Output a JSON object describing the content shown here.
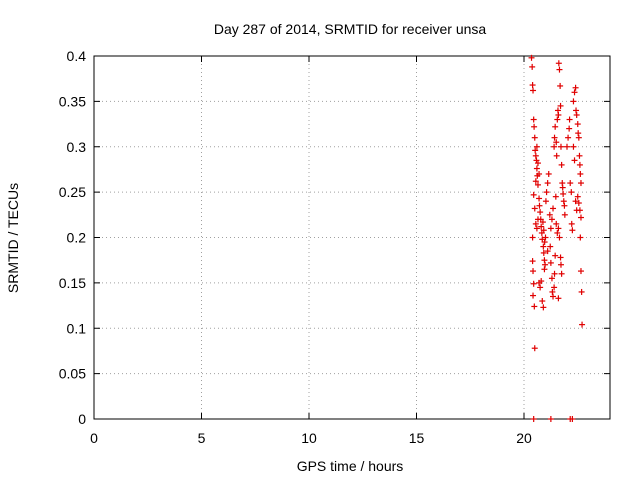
{
  "chart_data": {
    "type": "scatter",
    "title": "Day 287 of 2014, SRMTID for receiver unsa",
    "xlabel": "GPS time / hours",
    "ylabel": "SRMTID / TECUs",
    "xlim": [
      0,
      24
    ],
    "ylim": [
      0,
      0.4
    ],
    "x_ticks": [
      0,
      5,
      10,
      15,
      20
    ],
    "x_tick_labels": [
      "0",
      "5",
      "10",
      "15",
      "20"
    ],
    "y_ticks": [
      0,
      0.05,
      0.1,
      0.15,
      0.2,
      0.25,
      0.3,
      0.35,
      0.4
    ],
    "y_tick_labels": [
      "0",
      "0.05",
      "0.1",
      "0.15",
      "0.2",
      "0.25",
      "0.3",
      "0.35",
      "0.4"
    ],
    "grid": true,
    "marker": "+",
    "color": "#e00000",
    "series": [
      {
        "name": "SRMTID",
        "points": [
          [
            20.35,
            0.398
          ],
          [
            20.38,
            0.388
          ],
          [
            20.4,
            0.368
          ],
          [
            20.42,
            0.362
          ],
          [
            20.45,
            0.33
          ],
          [
            20.47,
            0.322
          ],
          [
            20.5,
            0.31
          ],
          [
            20.52,
            0.296
          ],
          [
            20.55,
            0.29
          ],
          [
            20.58,
            0.285
          ],
          [
            20.6,
            0.276
          ],
          [
            20.62,
            0.268
          ],
          [
            20.65,
            0.258
          ],
          [
            20.7,
            0.243
          ],
          [
            20.72,
            0.235
          ],
          [
            20.75,
            0.228
          ],
          [
            20.78,
            0.22
          ],
          [
            20.8,
            0.212
          ],
          [
            20.83,
            0.205
          ],
          [
            20.85,
            0.198
          ],
          [
            20.9,
            0.19
          ],
          [
            20.92,
            0.183
          ],
          [
            20.95,
            0.175
          ],
          [
            20.98,
            0.17
          ],
          [
            20.45,
            0.247
          ],
          [
            20.5,
            0.232
          ],
          [
            20.55,
            0.215
          ],
          [
            20.6,
            0.21
          ],
          [
            20.65,
            0.22
          ],
          [
            20.4,
            0.2
          ],
          [
            20.4,
            0.174
          ],
          [
            20.42,
            0.163
          ],
          [
            20.45,
            0.149
          ],
          [
            20.42,
            0.136
          ],
          [
            20.48,
            0.124
          ],
          [
            20.5,
            0.078
          ],
          [
            20.7,
            0.15
          ],
          [
            20.75,
            0.145
          ],
          [
            20.8,
            0.152
          ],
          [
            20.85,
            0.13
          ],
          [
            20.9,
            0.123
          ],
          [
            20.95,
            0.165
          ],
          [
            21.0,
            0.2
          ],
          [
            21.02,
            0.24
          ],
          [
            21.05,
            0.25
          ],
          [
            21.1,
            0.26
          ],
          [
            21.15,
            0.27
          ],
          [
            21.2,
            0.225
          ],
          [
            21.22,
            0.19
          ],
          [
            21.25,
            0.172
          ],
          [
            21.3,
            0.155
          ],
          [
            21.32,
            0.14
          ],
          [
            21.35,
            0.135
          ],
          [
            21.4,
            0.145
          ],
          [
            21.42,
            0.16
          ],
          [
            21.45,
            0.18
          ],
          [
            21.4,
            0.3
          ],
          [
            21.42,
            0.31
          ],
          [
            21.45,
            0.322
          ],
          [
            21.5,
            0.305
          ],
          [
            21.52,
            0.29
          ],
          [
            21.55,
            0.33
          ],
          [
            21.58,
            0.34
          ],
          [
            21.6,
            0.335
          ],
          [
            21.62,
            0.392
          ],
          [
            21.65,
            0.385
          ],
          [
            21.68,
            0.367
          ],
          [
            21.7,
            0.345
          ],
          [
            21.72,
            0.3
          ],
          [
            21.75,
            0.28
          ],
          [
            21.78,
            0.26
          ],
          [
            21.8,
            0.255
          ],
          [
            21.82,
            0.248
          ],
          [
            21.85,
            0.24
          ],
          [
            21.88,
            0.235
          ],
          [
            21.9,
            0.225
          ],
          [
            21.5,
            0.215
          ],
          [
            21.55,
            0.205
          ],
          [
            21.6,
            0.21
          ],
          [
            21.65,
            0.2
          ],
          [
            21.7,
            0.178
          ],
          [
            21.72,
            0.17
          ],
          [
            21.75,
            0.16
          ],
          [
            21.6,
            0.133
          ],
          [
            22.0,
            0.3
          ],
          [
            22.05,
            0.31
          ],
          [
            22.1,
            0.32
          ],
          [
            22.12,
            0.33
          ],
          [
            22.15,
            0.26
          ],
          [
            22.2,
            0.25
          ],
          [
            22.22,
            0.215
          ],
          [
            22.25,
            0.208
          ],
          [
            22.3,
            0.35
          ],
          [
            22.35,
            0.36
          ],
          [
            22.4,
            0.365
          ],
          [
            22.42,
            0.34
          ],
          [
            22.45,
            0.335
          ],
          [
            22.5,
            0.325
          ],
          [
            22.52,
            0.315
          ],
          [
            22.55,
            0.31
          ],
          [
            22.58,
            0.29
          ],
          [
            22.6,
            0.28
          ],
          [
            22.62,
            0.27
          ],
          [
            22.65,
            0.26
          ],
          [
            22.5,
            0.245
          ],
          [
            22.55,
            0.238
          ],
          [
            22.6,
            0.23
          ],
          [
            22.65,
            0.222
          ],
          [
            22.62,
            0.2
          ],
          [
            22.65,
            0.163
          ],
          [
            22.68,
            0.14
          ],
          [
            22.7,
            0.104
          ],
          [
            22.4,
            0.24
          ],
          [
            22.45,
            0.23
          ],
          [
            22.3,
            0.3
          ],
          [
            22.35,
            0.285
          ],
          [
            20.6,
            0.3
          ],
          [
            20.65,
            0.282
          ],
          [
            20.7,
            0.27
          ],
          [
            20.55,
            0.262
          ],
          [
            20.88,
            0.217
          ],
          [
            20.92,
            0.208
          ],
          [
            20.96,
            0.195
          ],
          [
            21.1,
            0.185
          ],
          [
            21.25,
            0.21
          ],
          [
            21.3,
            0.22
          ],
          [
            21.35,
            0.232
          ],
          [
            21.48,
            0.245
          ],
          [
            20.45,
            0.0
          ],
          [
            21.25,
            0.0
          ],
          [
            22.15,
            0.0
          ],
          [
            22.25,
            0.0
          ]
        ]
      }
    ]
  }
}
